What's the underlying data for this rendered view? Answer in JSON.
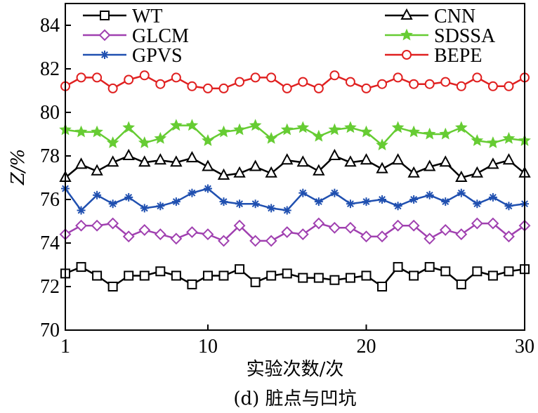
{
  "chart_data": {
    "type": "line",
    "xlabel": "实验次数/次",
    "ylabel": "Z/%",
    "caption": "(d) 脏点与凹坑",
    "xlim": [
      1,
      30
    ],
    "ylim": [
      70,
      85
    ],
    "xticks": [
      1,
      10,
      20,
      30
    ],
    "yticks": [
      70,
      72,
      74,
      76,
      78,
      80,
      82,
      84
    ],
    "grid": false,
    "legend_position": "top",
    "x": [
      1,
      2,
      3,
      4,
      5,
      6,
      7,
      8,
      9,
      10,
      11,
      12,
      13,
      14,
      15,
      16,
      17,
      18,
      19,
      20,
      21,
      22,
      23,
      24,
      25,
      26,
      27,
      28,
      29,
      30
    ],
    "series": [
      {
        "name": "WT",
        "color": "#000000",
        "marker": "square",
        "values": [
          72.6,
          72.9,
          72.5,
          72.0,
          72.5,
          72.5,
          72.7,
          72.5,
          72.1,
          72.5,
          72.5,
          72.8,
          72.2,
          72.5,
          72.6,
          72.4,
          72.4,
          72.3,
          72.4,
          72.5,
          72.0,
          72.9,
          72.5,
          72.9,
          72.7,
          72.1,
          72.7,
          72.5,
          72.7,
          72.8
        ]
      },
      {
        "name": "GLCM",
        "color": "#a040b0",
        "marker": "diamond",
        "values": [
          74.4,
          74.8,
          74.8,
          74.9,
          74.3,
          74.6,
          74.4,
          74.2,
          74.5,
          74.4,
          74.1,
          74.8,
          74.1,
          74.1,
          74.5,
          74.4,
          74.9,
          74.7,
          74.7,
          74.3,
          74.3,
          74.8,
          74.8,
          74.2,
          74.6,
          74.4,
          74.9,
          74.9,
          74.3,
          74.8
        ]
      },
      {
        "name": "GPVS",
        "color": "#2050b0",
        "marker": "asterisk",
        "values": [
          76.5,
          75.5,
          76.2,
          75.8,
          76.1,
          75.6,
          75.7,
          75.9,
          76.3,
          76.5,
          75.9,
          75.8,
          75.8,
          75.6,
          75.5,
          76.3,
          75.9,
          76.3,
          75.8,
          75.9,
          76.0,
          75.7,
          76.0,
          76.2,
          75.9,
          76.3,
          75.8,
          76.1,
          75.7,
          75.8
        ]
      },
      {
        "name": "CNN",
        "color": "#000000",
        "marker": "triangle",
        "values": [
          77.0,
          77.6,
          77.3,
          77.7,
          78.0,
          77.7,
          77.8,
          77.7,
          77.9,
          77.5,
          77.1,
          77.2,
          77.5,
          77.2,
          77.8,
          77.7,
          77.3,
          78.0,
          77.7,
          77.8,
          77.4,
          77.8,
          77.2,
          77.5,
          77.7,
          77.0,
          77.2,
          77.6,
          77.8,
          77.2
        ]
      },
      {
        "name": "SDSSA",
        "color": "#66cc33",
        "marker": "star",
        "values": [
          79.2,
          79.1,
          79.1,
          78.6,
          79.3,
          78.6,
          78.8,
          79.4,
          79.4,
          78.7,
          79.1,
          79.2,
          79.4,
          78.8,
          79.2,
          79.3,
          78.9,
          79.2,
          79.3,
          79.1,
          78.5,
          79.3,
          79.1,
          79.0,
          79.0,
          79.3,
          78.7,
          78.6,
          78.8,
          78.7
        ]
      },
      {
        "name": "BEPE",
        "color": "#e02020",
        "marker": "circle",
        "values": [
          81.2,
          81.6,
          81.6,
          81.1,
          81.5,
          81.7,
          81.3,
          81.6,
          81.2,
          81.1,
          81.1,
          81.4,
          81.6,
          81.6,
          81.1,
          81.4,
          81.1,
          81.7,
          81.4,
          81.1,
          81.3,
          81.6,
          81.3,
          81.3,
          81.4,
          81.2,
          81.6,
          81.2,
          81.2,
          81.6
        ]
      }
    ]
  }
}
